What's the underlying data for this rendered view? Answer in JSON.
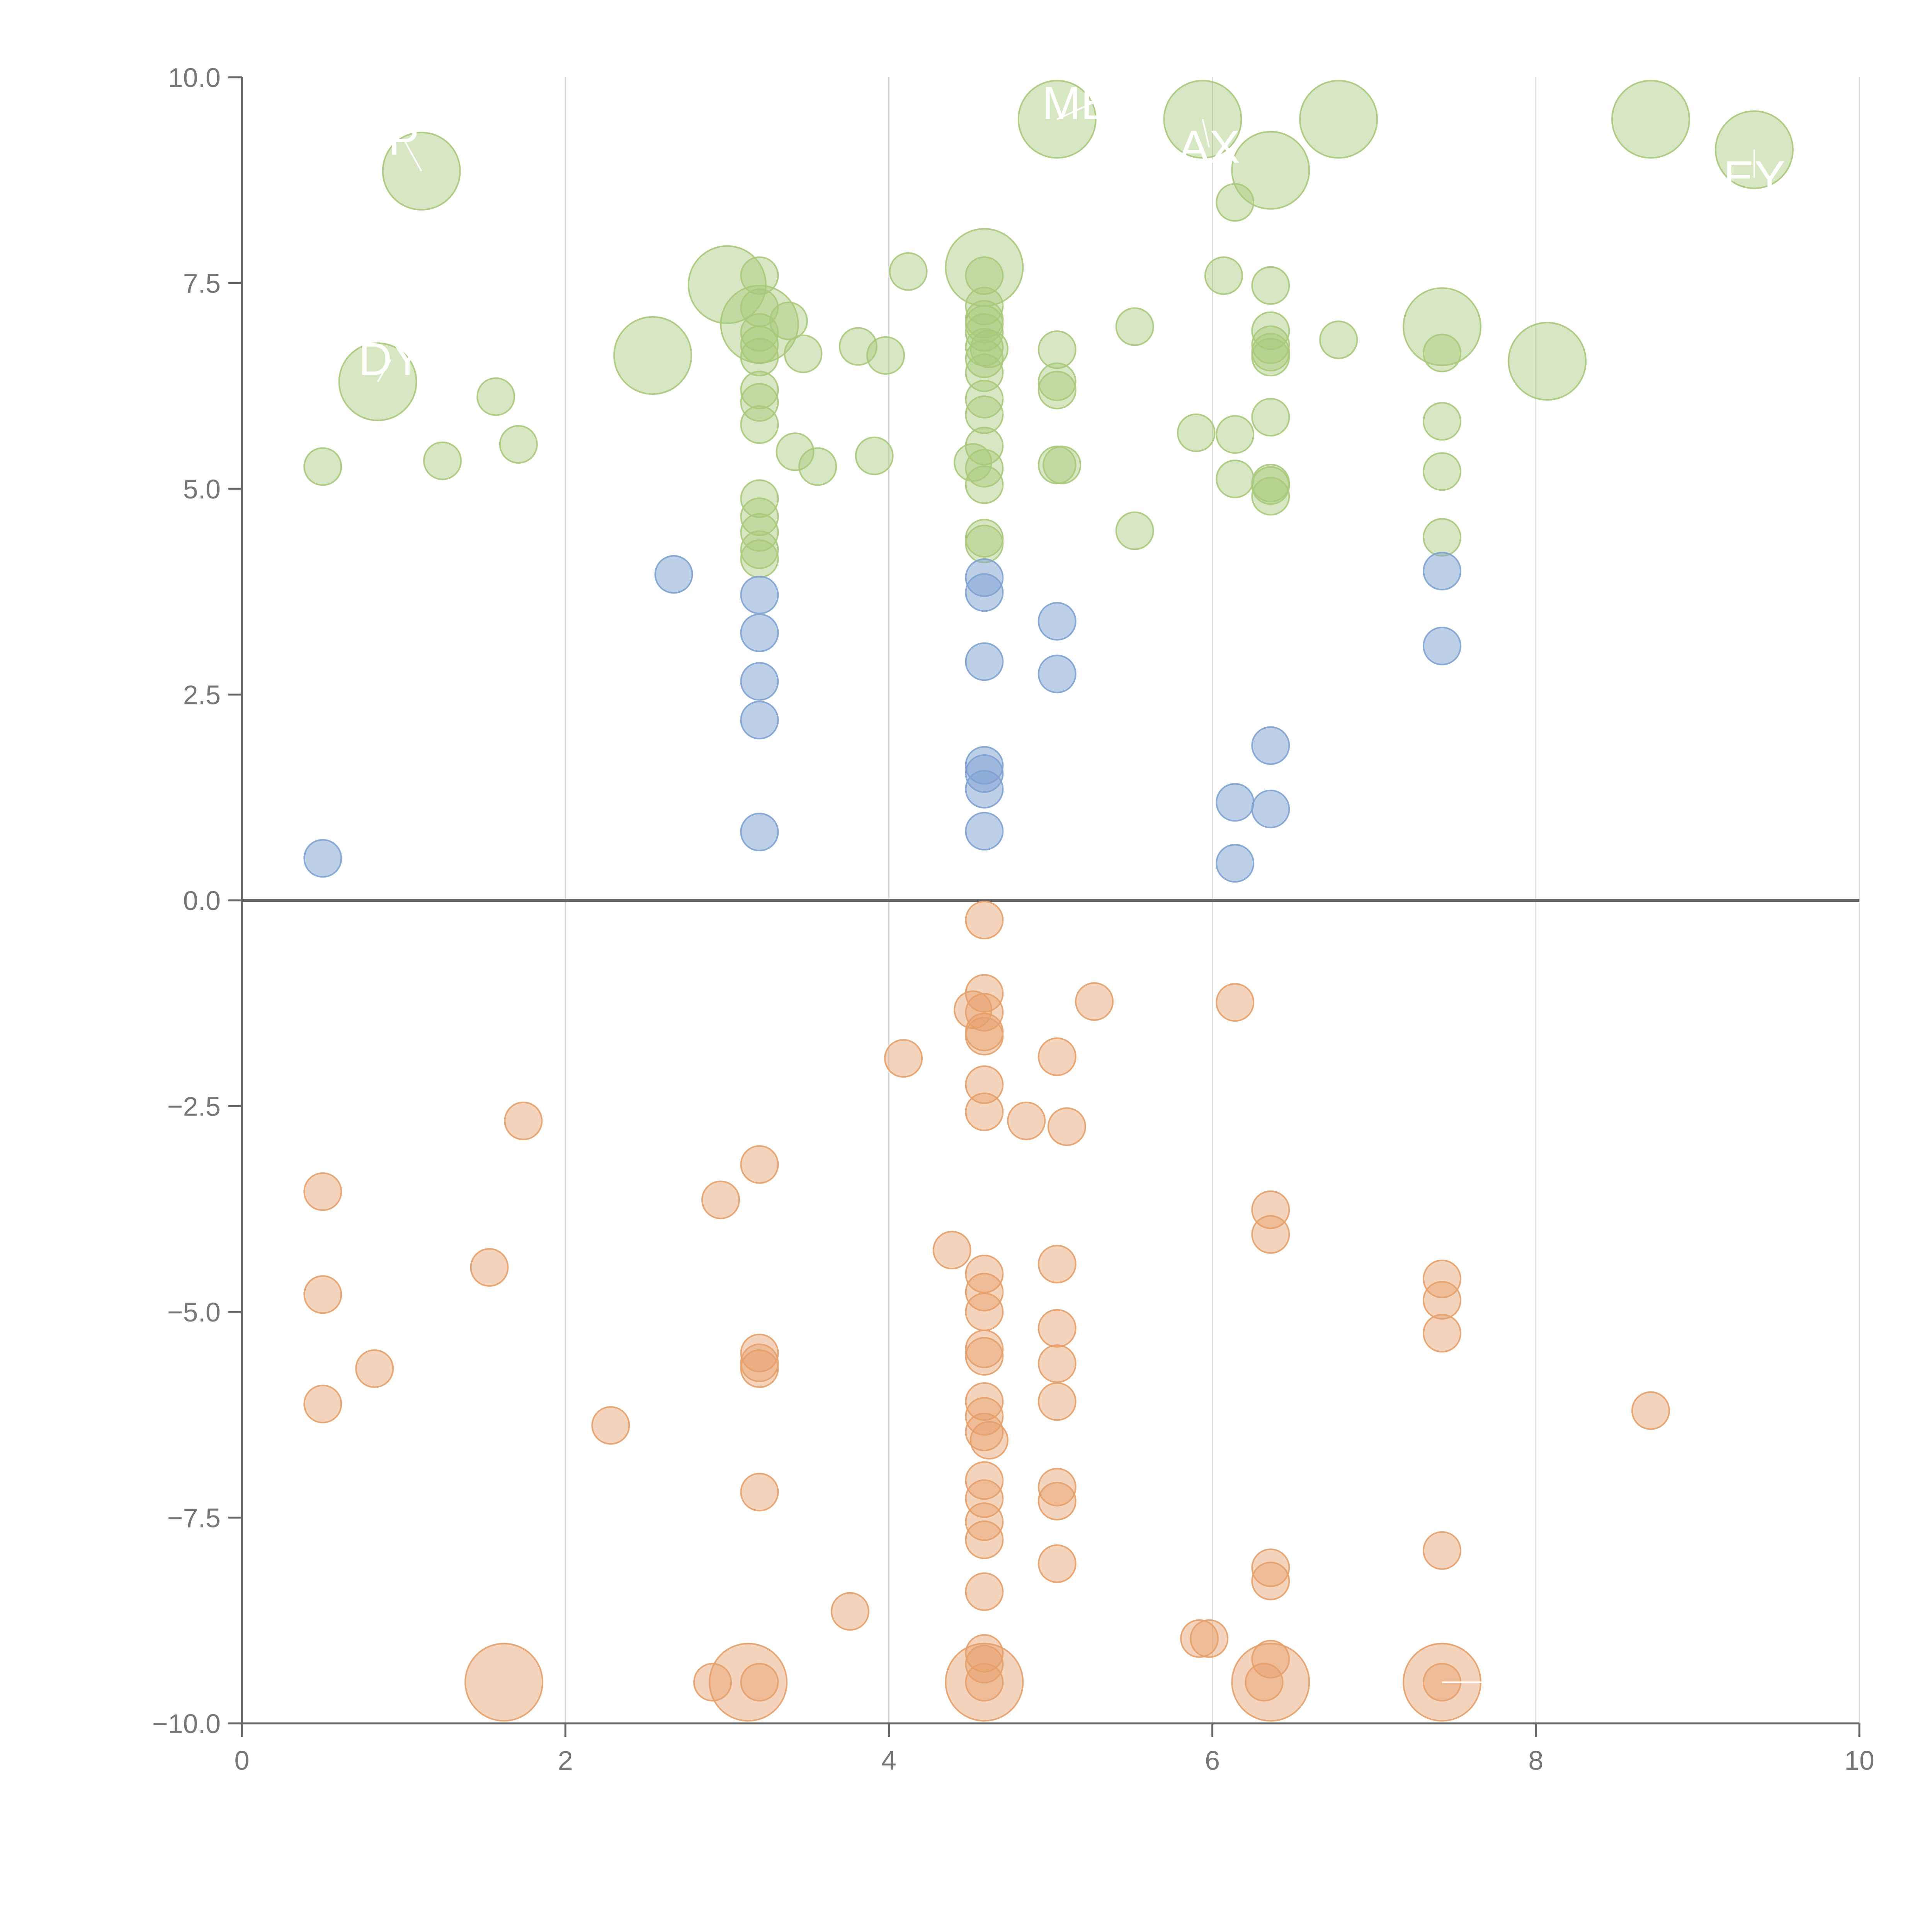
{
  "chart_data": {
    "type": "scatter",
    "title": "",
    "xlabel": "",
    "ylabel": "",
    "xlim": [
      0,
      10
    ],
    "ylim": [
      -10,
      10
    ],
    "x_ticks": [
      0,
      2,
      4,
      6,
      8,
      10
    ],
    "x_tick_labels": [
      "0",
      "2",
      "4",
      "6",
      "8",
      "10"
    ],
    "y_ticks": [
      10,
      7.5,
      5,
      2.5,
      0,
      -2.5,
      -5,
      -7.5,
      -10
    ],
    "y_tick_labels": [
      "10.0",
      "7.5",
      "5.0",
      "2.5",
      "0.0",
      "−2.5",
      "−5.0",
      "−7.5",
      "−10.0"
    ],
    "grid": "vertical",
    "zero_line": true,
    "colors": {
      "green": "#a8c97b",
      "blue": "#7ea2d2",
      "orange": "#e6a06a",
      "axis": "#666666",
      "grid": "#d9d9d9"
    },
    "series": [
      {
        "name": "green",
        "points": [
          [
            0.5,
            5.27
          ],
          [
            1.24,
            5.34
          ],
          [
            1.57,
            6.12
          ],
          [
            1.71,
            5.54
          ],
          [
            3.2,
            7.59
          ],
          [
            3.2,
            7.2
          ],
          [
            3.2,
            6.9
          ],
          [
            3.2,
            6.75
          ],
          [
            3.2,
            6.6
          ],
          [
            3.2,
            6.2
          ],
          [
            3.2,
            6.05
          ],
          [
            3.2,
            5.78
          ],
          [
            3.2,
            4.88
          ],
          [
            3.2,
            4.66
          ],
          [
            3.2,
            4.47
          ],
          [
            3.2,
            4.26
          ],
          [
            3.2,
            4.15
          ],
          [
            3.42,
            5.45
          ],
          [
            3.47,
            6.64
          ],
          [
            3.38,
            7.04
          ],
          [
            3.56,
            5.27
          ],
          [
            3.81,
            6.73
          ],
          [
            3.91,
            5.4
          ],
          [
            3.98,
            6.62
          ],
          [
            4.12,
            7.64
          ],
          [
            4.59,
            7.59
          ],
          [
            4.59,
            7.22
          ],
          [
            4.59,
            7.06
          ],
          [
            4.59,
            7.0
          ],
          [
            4.59,
            6.9
          ],
          [
            4.59,
            6.72
          ],
          [
            4.59,
            6.58
          ],
          [
            4.59,
            6.41
          ],
          [
            4.59,
            6.09
          ],
          [
            4.59,
            5.9
          ],
          [
            4.59,
            5.52
          ],
          [
            4.59,
            5.25
          ],
          [
            4.59,
            5.05
          ],
          [
            4.59,
            4.4
          ],
          [
            4.59,
            4.33
          ],
          [
            4.52,
            5.32
          ],
          [
            4.62,
            6.7
          ],
          [
            5.04,
            6.69
          ],
          [
            5.04,
            6.3
          ],
          [
            5.04,
            6.2
          ],
          [
            5.04,
            5.29
          ],
          [
            5.07,
            5.29
          ],
          [
            5.52,
            6.97
          ],
          [
            5.52,
            4.49
          ],
          [
            5.9,
            5.68
          ],
          [
            6.07,
            7.59
          ],
          [
            6.14,
            8.48
          ],
          [
            6.14,
            5.66
          ],
          [
            6.14,
            5.12
          ],
          [
            6.36,
            7.47
          ],
          [
            6.36,
            6.92
          ],
          [
            6.36,
            6.75
          ],
          [
            6.36,
            6.66
          ],
          [
            6.36,
            6.6
          ],
          [
            6.36,
            5.87
          ],
          [
            6.36,
            5.07
          ],
          [
            6.36,
            5.04
          ],
          [
            6.36,
            4.91
          ],
          [
            6.78,
            6.81
          ],
          [
            7.42,
            6.65
          ],
          [
            7.42,
            5.82
          ],
          [
            7.42,
            5.21
          ],
          [
            7.42,
            4.41
          ]
        ]
      },
      {
        "name": "green-large",
        "points": [
          [
            0.84,
            6.3
          ],
          [
            1.11,
            8.86
          ],
          [
            2.54,
            6.62
          ],
          [
            3.0,
            7.48
          ],
          [
            3.2,
            7.0
          ],
          [
            4.59,
            7.69
          ],
          [
            5.04,
            9.49
          ],
          [
            5.94,
            9.49
          ],
          [
            6.36,
            8.87
          ],
          [
            6.78,
            9.49
          ],
          [
            7.42,
            6.97
          ],
          [
            8.07,
            6.55
          ],
          [
            8.71,
            9.49
          ],
          [
            9.35,
            9.12
          ]
        ]
      },
      {
        "name": "blue",
        "points": [
          [
            0.5,
            0.51
          ],
          [
            2.67,
            3.96
          ],
          [
            3.2,
            3.71
          ],
          [
            3.2,
            3.25
          ],
          [
            3.2,
            2.66
          ],
          [
            3.2,
            2.19
          ],
          [
            3.2,
            0.83
          ],
          [
            4.59,
            3.92
          ],
          [
            4.59,
            3.74
          ],
          [
            4.59,
            2.9
          ],
          [
            4.59,
            1.64
          ],
          [
            4.59,
            1.54
          ],
          [
            4.59,
            1.35
          ],
          [
            4.59,
            0.84
          ],
          [
            5.04,
            3.39
          ],
          [
            5.04,
            2.75
          ],
          [
            6.14,
            1.19
          ],
          [
            6.14,
            0.45
          ],
          [
            6.36,
            1.88
          ],
          [
            6.36,
            1.11
          ],
          [
            7.42,
            4.0
          ],
          [
            7.42,
            3.09
          ]
        ]
      },
      {
        "name": "orange",
        "points": [
          [
            0.5,
            -3.54
          ],
          [
            0.5,
            -4.79
          ],
          [
            0.5,
            -6.12
          ],
          [
            0.82,
            -5.69
          ],
          [
            1.53,
            -4.46
          ],
          [
            1.74,
            -2.68
          ],
          [
            2.28,
            -6.38
          ],
          [
            2.96,
            -3.64
          ],
          [
            2.91,
            -9.5
          ],
          [
            3.2,
            -3.21
          ],
          [
            3.2,
            -5.5
          ],
          [
            3.2,
            -5.62
          ],
          [
            3.2,
            -5.69
          ],
          [
            3.2,
            -7.19
          ],
          [
            3.2,
            -9.5
          ],
          [
            3.76,
            -8.64
          ],
          [
            4.09,
            -1.92
          ],
          [
            4.39,
            -4.25
          ],
          [
            4.59,
            -0.24
          ],
          [
            4.59,
            -1.13
          ],
          [
            4.59,
            -1.36
          ],
          [
            4.59,
            -1.6
          ],
          [
            4.59,
            -1.65
          ],
          [
            4.59,
            -2.24
          ],
          [
            4.59,
            -2.57
          ],
          [
            4.59,
            -4.54
          ],
          [
            4.59,
            -4.76
          ],
          [
            4.59,
            -5.0
          ],
          [
            4.59,
            -5.45
          ],
          [
            4.59,
            -5.54
          ],
          [
            4.59,
            -6.09
          ],
          [
            4.59,
            -6.27
          ],
          [
            4.59,
            -6.46
          ],
          [
            4.59,
            -7.05
          ],
          [
            4.59,
            -7.27
          ],
          [
            4.59,
            -7.55
          ],
          [
            4.59,
            -7.77
          ],
          [
            4.59,
            -8.4
          ],
          [
            4.59,
            -9.15
          ],
          [
            4.59,
            -9.28
          ],
          [
            4.59,
            -9.5
          ],
          [
            4.52,
            -1.33
          ],
          [
            4.62,
            -6.56
          ],
          [
            4.85,
            -2.68
          ],
          [
            5.04,
            -1.9
          ],
          [
            5.04,
            -4.42
          ],
          [
            5.04,
            -5.2
          ],
          [
            5.04,
            -5.63
          ],
          [
            5.04,
            -6.09
          ],
          [
            5.04,
            -7.13
          ],
          [
            5.04,
            -7.3
          ],
          [
            5.04,
            -8.06
          ],
          [
            5.1,
            -2.75
          ],
          [
            5.27,
            -1.23
          ],
          [
            5.92,
            -8.97
          ],
          [
            5.98,
            -8.97
          ],
          [
            6.14,
            -1.24
          ],
          [
            6.36,
            -3.76
          ],
          [
            6.36,
            -4.06
          ],
          [
            6.36,
            -8.11
          ],
          [
            6.36,
            -8.27
          ],
          [
            6.36,
            -9.22
          ],
          [
            6.32,
            -9.5
          ],
          [
            7.42,
            -4.6
          ],
          [
            7.42,
            -4.86
          ],
          [
            7.42,
            -5.26
          ],
          [
            7.42,
            -7.9
          ],
          [
            7.42,
            -9.5
          ],
          [
            8.71,
            -6.2
          ]
        ]
      },
      {
        "name": "orange-large",
        "points": [
          [
            1.62,
            -9.5
          ],
          [
            3.13,
            -9.5
          ],
          [
            4.59,
            -9.5
          ],
          [
            6.36,
            -9.5
          ],
          [
            7.42,
            -9.5
          ]
        ]
      }
    ],
    "annotations": [
      {
        "text": "MET",
        "x": 5.04,
        "y": 9.49,
        "label_x": 5.25,
        "label_y": 9.68
      },
      {
        "text": "AX",
        "x": 5.94,
        "y": 9.49,
        "label_x": 5.98,
        "label_y": 9.15
      },
      {
        "text": "DY",
        "x": 0.84,
        "y": 6.3,
        "label_x": 0.92,
        "label_y": 6.57
      },
      {
        "text": "P",
        "x": 1.11,
        "y": 8.86,
        "label_x": 1.0,
        "label_y": 9.25
      },
      {
        "text": "EY",
        "x": 9.35,
        "y": 9.12,
        "label_x": 9.35,
        "label_y": 8.78
      },
      {
        "text": "-A",
        "x": 7.42,
        "y": -9.5,
        "label_x": 7.8,
        "label_y": -9.5
      }
    ]
  }
}
